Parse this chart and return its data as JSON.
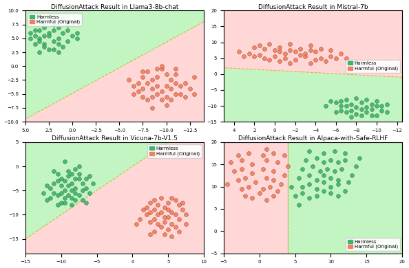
{
  "subplots": [
    {
      "title": "DiffusionAttack Result in Llama3-8b-chat",
      "xlim": [
        -14,
        5
      ],
      "ylim": [
        -10,
        10
      ],
      "invert_x": true,
      "harmless_color": "#3cb371",
      "harmful_color": "#F08060",
      "legend_loc": "upper left",
      "harmless_pts": [
        [
          1.5,
          7.0
        ],
        [
          2.0,
          6.5
        ],
        [
          0.5,
          7.5
        ],
        [
          1.0,
          6.0
        ],
        [
          2.5,
          6.0
        ],
        [
          3.0,
          7.0
        ],
        [
          3.5,
          6.5
        ],
        [
          0.0,
          5.5
        ],
        [
          1.5,
          5.0
        ],
        [
          2.5,
          5.5
        ],
        [
          3.0,
          5.5
        ],
        [
          3.5,
          5.0
        ],
        [
          4.0,
          5.5
        ],
        [
          -0.5,
          5.0
        ],
        [
          0.5,
          4.5
        ],
        [
          1.5,
          4.0
        ],
        [
          2.0,
          4.5
        ],
        [
          3.0,
          4.0
        ],
        [
          3.5,
          4.5
        ],
        [
          4.0,
          4.0
        ],
        [
          4.5,
          5.0
        ],
        [
          1.0,
          3.5
        ],
        [
          2.0,
          3.0
        ],
        [
          3.0,
          3.5
        ],
        [
          2.5,
          3.0
        ],
        [
          1.5,
          2.5
        ],
        [
          3.5,
          2.5
        ],
        [
          2.0,
          7.5
        ],
        [
          4.0,
          6.5
        ],
        [
          0.0,
          8.0
        ],
        [
          1.0,
          8.5
        ],
        [
          -0.5,
          6.0
        ],
        [
          0.5,
          6.5
        ],
        [
          4.5,
          6.0
        ],
        [
          3.0,
          8.0
        ]
      ],
      "harmful_pts": [
        [
          -10.0,
          -1.5
        ],
        [
          -9.0,
          -2.0
        ],
        [
          -8.0,
          -1.0
        ],
        [
          -9.5,
          -0.5
        ],
        [
          -8.5,
          -2.5
        ],
        [
          -10.5,
          -2.5
        ],
        [
          -11.0,
          -1.5
        ],
        [
          -7.5,
          -2.0
        ],
        [
          -8.0,
          -3.0
        ],
        [
          -9.0,
          -3.5
        ],
        [
          -10.0,
          -3.5
        ],
        [
          -11.0,
          -3.0
        ],
        [
          -7.0,
          -3.0
        ],
        [
          -8.5,
          -4.0
        ],
        [
          -9.5,
          -4.5
        ],
        [
          -10.5,
          -4.0
        ],
        [
          -11.5,
          -3.5
        ],
        [
          -7.5,
          -4.0
        ],
        [
          -9.0,
          -5.0
        ],
        [
          -10.0,
          -5.5
        ],
        [
          -8.5,
          -5.5
        ],
        [
          -7.0,
          -4.5
        ],
        [
          -12.0,
          -3.0
        ],
        [
          -11.0,
          -5.0
        ],
        [
          -6.5,
          -3.5
        ],
        [
          -9.5,
          -6.0
        ],
        [
          -10.5,
          -6.0
        ],
        [
          -8.0,
          -6.0
        ],
        [
          -11.5,
          -5.0
        ],
        [
          -7.5,
          -5.5
        ],
        [
          -13.0,
          -2.0
        ],
        [
          -12.5,
          -4.0
        ],
        [
          -6.0,
          -2.5
        ],
        [
          -9.0,
          -0.5
        ],
        [
          -7.5,
          -1.0
        ],
        [
          -11.0,
          -0.5
        ],
        [
          -10.0,
          -7.0
        ],
        [
          -8.5,
          -7.5
        ],
        [
          -9.5,
          0.0
        ],
        [
          -6.5,
          -5.0
        ],
        [
          -12.0,
          -5.5
        ],
        [
          -13.0,
          -5.0
        ]
      ],
      "bline_x": [
        -14,
        5
      ],
      "bline_y": [
        8.0,
        -9.5
      ],
      "harm_above": false
    },
    {
      "title": "DiffusionAttack Result in Mistral-7b",
      "xlim": [
        -12.5,
        5
      ],
      "ylim": [
        -15,
        20
      ],
      "invert_x": true,
      "harmless_color": "#3cb371",
      "harmful_color": "#F08060",
      "legend_loc": "center right",
      "harmless_pts": [
        [
          -9.0,
          -8.0
        ],
        [
          -8.0,
          -7.5
        ],
        [
          -7.0,
          -8.0
        ],
        [
          -8.5,
          -9.0
        ],
        [
          -7.5,
          -9.5
        ],
        [
          -6.5,
          -8.5
        ],
        [
          -9.5,
          -9.5
        ],
        [
          -10.0,
          -8.5
        ],
        [
          -7.0,
          -10.0
        ],
        [
          -8.0,
          -10.5
        ],
        [
          -9.0,
          -10.5
        ],
        [
          -10.0,
          -10.0
        ],
        [
          -6.5,
          -10.0
        ],
        [
          -8.5,
          -11.0
        ],
        [
          -7.5,
          -11.5
        ],
        [
          -9.5,
          -11.0
        ],
        [
          -10.5,
          -10.0
        ],
        [
          -6.0,
          -9.0
        ],
        [
          -9.0,
          -12.0
        ],
        [
          -8.0,
          -12.5
        ],
        [
          -10.5,
          -11.5
        ],
        [
          -7.0,
          -12.0
        ],
        [
          -11.0,
          -9.5
        ],
        [
          -6.5,
          -11.5
        ],
        [
          -5.5,
          -8.5
        ],
        [
          -9.5,
          -13.0
        ],
        [
          -8.5,
          -13.0
        ],
        [
          -11.0,
          -12.0
        ],
        [
          -7.5,
          -13.5
        ],
        [
          -10.0,
          -13.0
        ],
        [
          -5.0,
          -10.0
        ],
        [
          -6.0,
          -12.0
        ]
      ],
      "harmful_pts": [
        [
          -1.0,
          5.0
        ],
        [
          -2.0,
          4.5
        ],
        [
          -3.0,
          5.5
        ],
        [
          -4.0,
          4.5
        ],
        [
          -1.5,
          3.5
        ],
        [
          -3.5,
          3.5
        ],
        [
          -0.5,
          4.0
        ],
        [
          0.0,
          5.5
        ],
        [
          -2.5,
          6.0
        ],
        [
          -4.5,
          5.0
        ],
        [
          -1.0,
          6.5
        ],
        [
          0.5,
          4.5
        ],
        [
          -3.0,
          6.5
        ],
        [
          -5.0,
          4.0
        ],
        [
          1.0,
          5.0
        ],
        [
          -0.5,
          7.0
        ],
        [
          -2.0,
          7.0
        ],
        [
          1.5,
          6.0
        ],
        [
          -4.0,
          7.0
        ],
        [
          2.0,
          5.5
        ],
        [
          -5.5,
          5.5
        ],
        [
          -1.5,
          7.5
        ],
        [
          0.0,
          7.5
        ],
        [
          -3.5,
          7.5
        ],
        [
          2.5,
          6.5
        ],
        [
          -6.0,
          5.0
        ],
        [
          3.0,
          5.5
        ],
        [
          1.0,
          8.0
        ],
        [
          -2.5,
          8.0
        ],
        [
          -0.5,
          8.5
        ],
        [
          -4.5,
          8.0
        ],
        [
          1.5,
          9.0
        ],
        [
          -6.5,
          6.5
        ],
        [
          -1.5,
          9.5
        ],
        [
          2.0,
          8.5
        ],
        [
          3.5,
          7.0
        ],
        [
          -3.5,
          9.0
        ],
        [
          -5.5,
          7.5
        ],
        [
          0.5,
          9.5
        ],
        [
          -7.0,
          5.0
        ]
      ],
      "bline_x": [
        -12.5,
        5
      ],
      "bline_y": [
        -1.0,
        2.0
      ],
      "harm_above": true
    },
    {
      "title": "DiffusionAttack Result in Vicuna-7b-V1.5",
      "xlim": [
        -15,
        10
      ],
      "ylim": [
        -18,
        5
      ],
      "invert_x": false,
      "harmless_color": "#3cb371",
      "harmful_color": "#F08060",
      "legend_loc": "upper right",
      "harmless_pts": [
        [
          -9.0,
          -2.0
        ],
        [
          -8.0,
          -2.5
        ],
        [
          -9.5,
          -3.0
        ],
        [
          -8.5,
          -3.5
        ],
        [
          -7.5,
          -2.5
        ],
        [
          -10.0,
          -2.5
        ],
        [
          -7.0,
          -3.5
        ],
        [
          -9.0,
          -4.0
        ],
        [
          -8.0,
          -4.5
        ],
        [
          -10.0,
          -4.0
        ],
        [
          -10.5,
          -3.0
        ],
        [
          -6.5,
          -2.5
        ],
        [
          -8.5,
          -5.0
        ],
        [
          -9.5,
          -5.0
        ],
        [
          -11.0,
          -3.5
        ],
        [
          -7.0,
          -5.0
        ],
        [
          -8.0,
          -5.5
        ],
        [
          -10.0,
          -5.5
        ],
        [
          -11.5,
          -4.5
        ],
        [
          -6.5,
          -4.5
        ],
        [
          -9.0,
          -6.0
        ],
        [
          -9.5,
          -6.5
        ],
        [
          -8.5,
          -6.5
        ],
        [
          -11.0,
          -5.5
        ],
        [
          -7.5,
          -6.0
        ],
        [
          -12.0,
          -4.0
        ],
        [
          -10.5,
          -6.0
        ],
        [
          -6.0,
          -5.5
        ],
        [
          -8.0,
          -7.0
        ],
        [
          -9.5,
          -7.5
        ],
        [
          -11.5,
          -6.5
        ],
        [
          -7.0,
          -7.0
        ],
        [
          -5.5,
          -3.5
        ],
        [
          -10.0,
          -7.5
        ],
        [
          -12.5,
          -5.5
        ],
        [
          -8.5,
          -1.5
        ],
        [
          -9.0,
          -1.0
        ],
        [
          -10.5,
          -1.5
        ],
        [
          -7.5,
          -1.5
        ],
        [
          -6.0,
          -2.0
        ],
        [
          -8.0,
          -0.5
        ],
        [
          -11.0,
          -1.0
        ],
        [
          -7.5,
          0.0
        ],
        [
          -8.5,
          -8.0
        ],
        [
          -12.0,
          -7.0
        ],
        [
          -9.5,
          1.0
        ],
        [
          -6.5,
          -7.5
        ],
        [
          -10.5,
          -8.0
        ]
      ],
      "harmful_pts": [
        [
          3.0,
          -7.0
        ],
        [
          4.0,
          -6.5
        ],
        [
          5.0,
          -7.5
        ],
        [
          3.5,
          -8.0
        ],
        [
          5.5,
          -6.5
        ],
        [
          4.5,
          -8.5
        ],
        [
          2.5,
          -7.5
        ],
        [
          6.0,
          -7.0
        ],
        [
          3.0,
          -9.0
        ],
        [
          5.0,
          -9.0
        ],
        [
          4.0,
          -9.5
        ],
        [
          6.5,
          -8.0
        ],
        [
          2.5,
          -9.5
        ],
        [
          5.5,
          -9.5
        ],
        [
          3.5,
          -10.0
        ],
        [
          7.0,
          -7.5
        ],
        [
          4.5,
          -10.5
        ],
        [
          6.0,
          -10.0
        ],
        [
          2.0,
          -8.5
        ],
        [
          5.0,
          -10.5
        ],
        [
          3.0,
          -11.0
        ],
        [
          7.0,
          -9.0
        ],
        [
          4.5,
          -11.5
        ],
        [
          6.5,
          -11.0
        ],
        [
          2.0,
          -10.0
        ],
        [
          5.5,
          -12.0
        ],
        [
          3.5,
          -12.0
        ],
        [
          7.5,
          -10.0
        ],
        [
          4.0,
          -12.5
        ],
        [
          6.0,
          -12.5
        ],
        [
          2.5,
          -11.5
        ],
        [
          5.0,
          -13.0
        ],
        [
          1.5,
          -9.0
        ],
        [
          6.5,
          -13.5
        ],
        [
          3.0,
          -13.5
        ],
        [
          7.5,
          -12.0
        ],
        [
          1.0,
          -11.0
        ],
        [
          4.5,
          -14.0
        ],
        [
          5.5,
          -14.5
        ],
        [
          2.5,
          -14.0
        ],
        [
          0.5,
          -12.0
        ]
      ],
      "bline_x": [
        -15,
        10
      ],
      "bline_y": [
        -15.0,
        10.0
      ],
      "harm_above": false
    },
    {
      "title": "DiffusionAttack Result in Alpaca-with-Safe-RLHF",
      "xlim": [
        -5,
        20
      ],
      "ylim": [
        -5,
        20
      ],
      "invert_x": false,
      "harmless_color": "#3cb371",
      "harmful_color": "#F08060",
      "legend_loc": "lower right",
      "harmless_pts": [
        [
          5.0,
          8.0
        ],
        [
          6.0,
          8.5
        ],
        [
          7.0,
          7.5
        ],
        [
          8.0,
          8.0
        ],
        [
          9.0,
          9.0
        ],
        [
          10.0,
          8.5
        ],
        [
          11.0,
          8.0
        ],
        [
          6.0,
          10.0
        ],
        [
          7.0,
          10.5
        ],
        [
          8.0,
          9.5
        ],
        [
          9.0,
          11.0
        ],
        [
          10.0,
          10.0
        ],
        [
          11.0,
          10.5
        ],
        [
          12.0,
          9.0
        ],
        [
          5.5,
          12.0
        ],
        [
          7.0,
          12.5
        ],
        [
          8.0,
          11.5
        ],
        [
          9.0,
          12.5
        ],
        [
          10.0,
          12.0
        ],
        [
          11.0,
          11.5
        ],
        [
          12.5,
          11.0
        ],
        [
          6.0,
          14.0
        ],
        [
          7.5,
          14.5
        ],
        [
          8.5,
          13.5
        ],
        [
          9.5,
          14.0
        ],
        [
          10.5,
          13.5
        ],
        [
          11.5,
          14.0
        ],
        [
          13.0,
          12.5
        ],
        [
          6.5,
          16.0
        ],
        [
          8.0,
          16.5
        ],
        [
          9.0,
          15.5
        ],
        [
          10.0,
          16.0
        ],
        [
          11.0,
          15.5
        ],
        [
          12.0,
          16.0
        ],
        [
          13.5,
          14.5
        ],
        [
          7.0,
          18.0
        ],
        [
          9.0,
          17.5
        ],
        [
          10.5,
          18.0
        ],
        [
          12.0,
          17.5
        ],
        [
          14.0,
          16.5
        ],
        [
          4.5,
          10.0
        ],
        [
          5.5,
          6.0
        ]
      ],
      "harmful_pts": [
        [
          -2.0,
          8.0
        ],
        [
          -1.0,
          7.5
        ],
        [
          0.0,
          8.5
        ],
        [
          1.0,
          7.0
        ],
        [
          2.0,
          8.0
        ],
        [
          -2.5,
          9.5
        ],
        [
          -1.5,
          10.0
        ],
        [
          0.5,
          9.5
        ],
        [
          1.5,
          10.0
        ],
        [
          2.5,
          9.0
        ],
        [
          -3.0,
          11.5
        ],
        [
          -2.0,
          12.0
        ],
        [
          -0.5,
          11.0
        ],
        [
          1.0,
          12.0
        ],
        [
          2.0,
          11.5
        ],
        [
          3.0,
          10.5
        ],
        [
          -3.5,
          13.5
        ],
        [
          -2.5,
          14.0
        ],
        [
          -1.0,
          13.0
        ],
        [
          0.5,
          14.0
        ],
        [
          2.0,
          13.5
        ],
        [
          3.5,
          12.5
        ],
        [
          -4.0,
          15.5
        ],
        [
          -2.5,
          16.0
        ],
        [
          -1.0,
          15.0
        ],
        [
          1.0,
          16.0
        ],
        [
          2.5,
          15.5
        ],
        [
          4.0,
          14.5
        ],
        [
          -3.0,
          17.0
        ],
        [
          -1.5,
          17.5
        ],
        [
          0.5,
          17.0
        ],
        [
          2.0,
          17.5
        ],
        [
          3.5,
          17.0
        ],
        [
          1.0,
          18.5
        ],
        [
          -4.5,
          10.5
        ]
      ],
      "bline_x": [
        4.0,
        4.0
      ],
      "bline_y": [
        -5,
        20
      ],
      "harm_above": false,
      "vertical_boundary": true,
      "harm_left": true
    }
  ],
  "harmless_bg": "#90EE90",
  "harmful_bg": "#FFB6B6",
  "dot_size": 18,
  "dot_alpha": 0.9,
  "bg_alpha": 0.55
}
